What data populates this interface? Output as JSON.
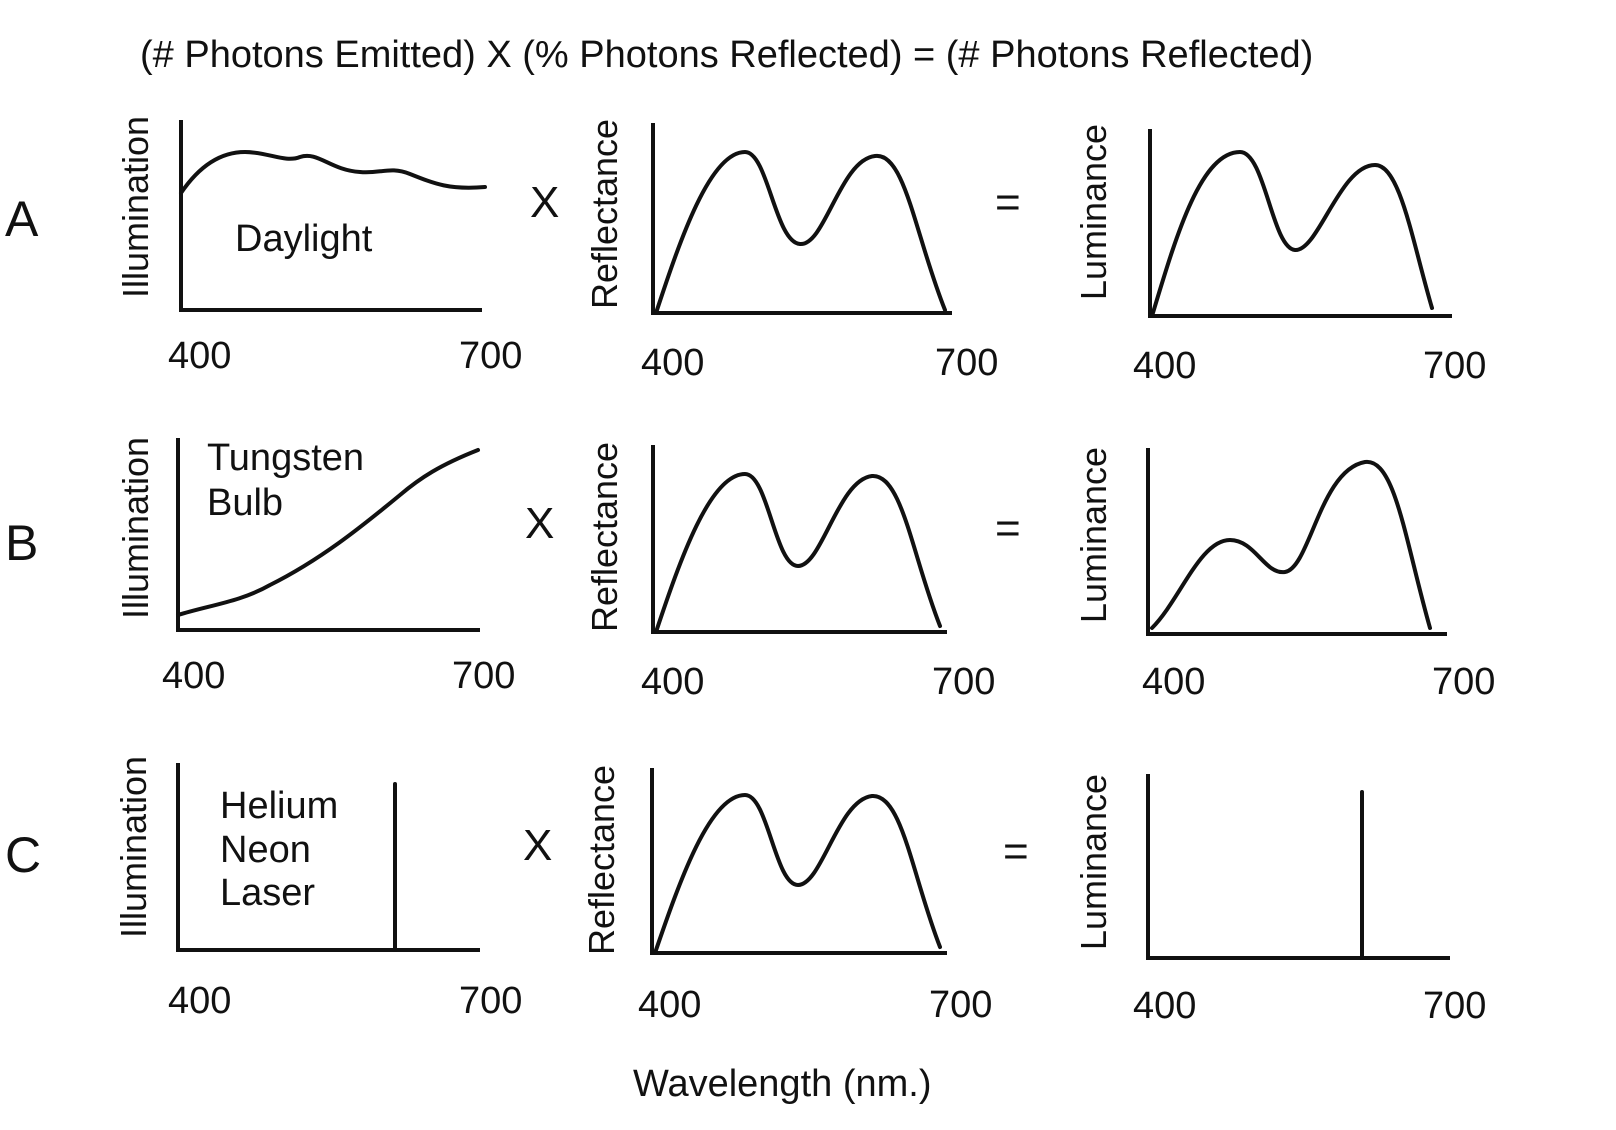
{
  "header": "(# Photons Emitted) X  (% Photons Reflected) = (# Photons Reflected)",
  "footer": "Wavelength (nm.)",
  "operators": {
    "times": "X",
    "equals": "="
  },
  "rows": [
    {
      "label": "A",
      "illumination": {
        "axis": "Illumination",
        "xmin": "400",
        "xmax": "700",
        "source_lines": [
          "Daylight"
        ],
        "shape": "daylight"
      },
      "reflectance": {
        "axis": "Reflectance",
        "xmin": "400",
        "xmax": "700"
      },
      "luminance": {
        "axis": "Luminance",
        "xmin": "400",
        "xmax": "700",
        "shape": "two-peaks-equal"
      }
    },
    {
      "label": "B",
      "illumination": {
        "axis": "Illumination",
        "xmin": "400",
        "xmax": "700",
        "source_lines": [
          "Tungsten",
          "Bulb"
        ],
        "shape": "tungsten"
      },
      "reflectance": {
        "axis": "Reflectance",
        "xmin": "400",
        "xmax": "700"
      },
      "luminance": {
        "axis": "Luminance",
        "xmin": "400",
        "xmax": "700",
        "shape": "two-peaks-red-weighted"
      }
    },
    {
      "label": "C",
      "illumination": {
        "axis": "Illumination",
        "xmin": "400",
        "xmax": "700",
        "source_lines": [
          "Helium",
          "Neon",
          "Laser"
        ],
        "shape": "laser-line"
      },
      "reflectance": {
        "axis": "Reflectance",
        "xmin": "400",
        "xmax": "700"
      },
      "luminance": {
        "axis": "Luminance",
        "xmin": "400",
        "xmax": "700",
        "shape": "single-line"
      }
    }
  ]
}
